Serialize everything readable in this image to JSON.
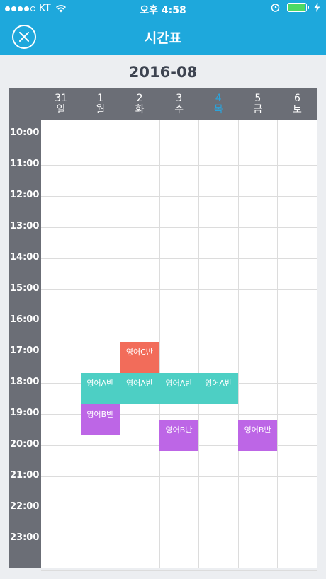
{
  "status": {
    "carrier": "KT",
    "time": "오후 4:58",
    "battery_level": 1.0
  },
  "nav": {
    "title": "시간표"
  },
  "month": "2016-08",
  "colors": {
    "accent": "#1ea8dc",
    "header": "#6b6e76",
    "today": "#2ba4dc",
    "red": "#f26c5a",
    "teal": "#4dcfc4",
    "purple": "#bd66e6"
  },
  "days": [
    {
      "date": "31",
      "weekday": "일",
      "today": false
    },
    {
      "date": "1",
      "weekday": "월",
      "today": false
    },
    {
      "date": "2",
      "weekday": "화",
      "today": false
    },
    {
      "date": "3",
      "weekday": "수",
      "today": false
    },
    {
      "date": "4",
      "weekday": "목",
      "today": true
    },
    {
      "date": "5",
      "weekday": "금",
      "today": false
    },
    {
      "date": "6",
      "weekday": "토",
      "today": false
    }
  ],
  "hours": [
    "10:00",
    "11:00",
    "12:00",
    "13:00",
    "14:00",
    "15:00",
    "16:00",
    "17:00",
    "18:00",
    "19:00",
    "20:00",
    "21:00",
    "22:00",
    "23:00"
  ],
  "lessons": [
    {
      "label": "영어C반",
      "day": 2,
      "start": "17:00",
      "end": "18:00",
      "color": "red"
    },
    {
      "label": "영어A반",
      "day": 1,
      "start": "18:00",
      "end": "19:00",
      "color": "teal"
    },
    {
      "label": "영어A반",
      "day": 2,
      "start": "18:00",
      "end": "19:00",
      "color": "teal"
    },
    {
      "label": "영어A반",
      "day": 3,
      "start": "18:00",
      "end": "19:00",
      "color": "teal"
    },
    {
      "label": "영어A반",
      "day": 4,
      "start": "18:00",
      "end": "19:00",
      "color": "teal"
    },
    {
      "label": "영어B반",
      "day": 1,
      "start": "19:00",
      "end": "20:00",
      "color": "purple"
    },
    {
      "label": "영어B반",
      "day": 3,
      "start": "19:30",
      "end": "20:30",
      "color": "purple"
    },
    {
      "label": "영어B반",
      "day": 5,
      "start": "19:30",
      "end": "20:30",
      "color": "purple"
    }
  ]
}
